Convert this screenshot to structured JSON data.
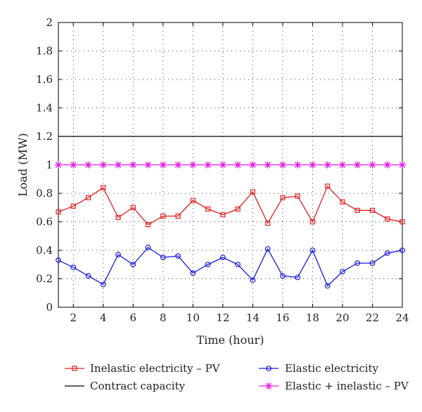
{
  "chart_data": {
    "type": "line",
    "xlabel": "Time (hour)",
    "ylabel": "Load (MW)",
    "xlim": [
      1,
      24
    ],
    "ylim": [
      0,
      2
    ],
    "x_ticks": [
      2,
      4,
      6,
      8,
      10,
      12,
      14,
      16,
      18,
      20,
      22,
      24
    ],
    "y_ticks": [
      0,
      0.2,
      0.4,
      0.6,
      0.8,
      1,
      1.2,
      1.4,
      1.6,
      1.8,
      2
    ],
    "y_tick_labels": [
      "0",
      "0.2",
      "0.4",
      "0.6",
      "0.8",
      "1",
      "1.2",
      "1.4",
      "1.6",
      "1.8",
      "2"
    ],
    "grid": "dotted",
    "legend_position": "bottom",
    "x": [
      1,
      2,
      3,
      4,
      5,
      6,
      7,
      8,
      9,
      10,
      11,
      12,
      13,
      14,
      15,
      16,
      17,
      18,
      19,
      20,
      21,
      22,
      23,
      24
    ],
    "series": [
      {
        "name": "Inelastic electricity – PV",
        "color": "#e02020",
        "marker": "square",
        "values": [
          0.67,
          0.71,
          0.77,
          0.84,
          0.63,
          0.7,
          0.58,
          0.64,
          0.64,
          0.75,
          0.69,
          0.65,
          0.69,
          0.81,
          0.59,
          0.77,
          0.78,
          0.6,
          0.85,
          0.74,
          0.68,
          0.68,
          0.62,
          0.6
        ]
      },
      {
        "name": "Elastic electricity",
        "color": "#1a1adc",
        "marker": "circle",
        "values": [
          0.33,
          0.28,
          0.22,
          0.16,
          0.37,
          0.3,
          0.42,
          0.35,
          0.36,
          0.24,
          0.3,
          0.35,
          0.3,
          0.19,
          0.41,
          0.22,
          0.21,
          0.4,
          0.15,
          0.25,
          0.31,
          0.31,
          0.38,
          0.4
        ]
      },
      {
        "name": "Contract capacity",
        "color": "#000000",
        "marker": "none",
        "values": [
          1.2,
          1.2,
          1.2,
          1.2,
          1.2,
          1.2,
          1.2,
          1.2,
          1.2,
          1.2,
          1.2,
          1.2,
          1.2,
          1.2,
          1.2,
          1.2,
          1.2,
          1.2,
          1.2,
          1.2,
          1.2,
          1.2,
          1.2,
          1.2
        ]
      },
      {
        "name": "Elastic + inelastic – PV",
        "color": "#e619e6",
        "marker": "star",
        "values": [
          1,
          1,
          1,
          1,
          1,
          1,
          1,
          1,
          1,
          1,
          1,
          1,
          1,
          1,
          1,
          1,
          1,
          1,
          1,
          1,
          1,
          1,
          1,
          1
        ]
      }
    ],
    "legend_order": [
      0,
      1,
      2,
      3
    ]
  }
}
